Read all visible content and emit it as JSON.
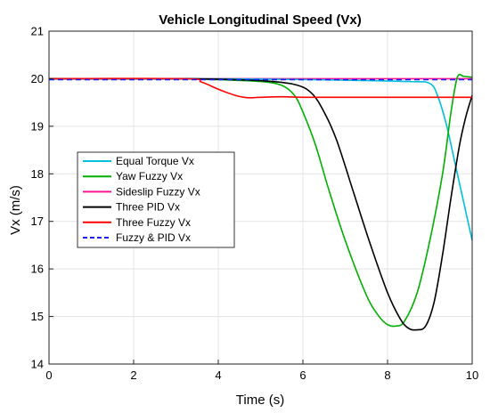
{
  "chart_data": {
    "type": "line",
    "title": "Vehicle Longitudinal Speed (Vx)",
    "xlabel": "Time (s)",
    "ylabel": "Vx (m/s)",
    "xlim": [
      0,
      10
    ],
    "ylim": [
      14,
      21
    ],
    "xticks": [
      0,
      2,
      4,
      6,
      8,
      10
    ],
    "yticks": [
      14,
      15,
      16,
      17,
      18,
      19,
      20,
      21
    ],
    "xtick_labels": [
      "0",
      "2",
      "4",
      "6",
      "8",
      "10"
    ],
    "ytick_labels": [
      "14",
      "15",
      "16",
      "17",
      "18",
      "19",
      "20",
      "21"
    ],
    "grid": true,
    "legend_position": "left-middle",
    "series": [
      {
        "name": "Equal Torque Vx",
        "color": "#00bfdf",
        "dash": "solid",
        "x": [
          0,
          3.0,
          5.0,
          7.0,
          8.5,
          9.0,
          9.2,
          9.4,
          9.6,
          9.8,
          10.0
        ],
        "y": [
          20.0,
          20.0,
          19.99,
          19.97,
          19.94,
          19.9,
          19.6,
          19.0,
          18.2,
          17.4,
          16.6
        ]
      },
      {
        "name": "Yaw Fuzzy Vx",
        "color": "#00b000",
        "dash": "solid",
        "x": [
          0,
          3.0,
          4.0,
          5.0,
          5.5,
          5.8,
          6.0,
          6.3,
          6.6,
          7.0,
          7.5,
          7.8,
          8.0,
          8.2,
          8.4,
          8.7,
          9.0,
          9.3,
          9.5,
          9.65,
          9.8,
          10.0
        ],
        "y": [
          20.0,
          20.0,
          19.98,
          19.94,
          19.86,
          19.65,
          19.3,
          18.6,
          17.7,
          16.6,
          15.45,
          15.0,
          14.83,
          14.8,
          14.9,
          15.5,
          16.6,
          18.0,
          19.3,
          20.03,
          20.05,
          20.03
        ]
      },
      {
        "name": "Sideslip    Fuzzy Vx",
        "color": "#ff1493",
        "dash": "solid",
        "x": [
          0,
          2,
          4,
          6,
          8,
          10
        ],
        "y": [
          20.0,
          20.0,
          20.0,
          20.0,
          20.0,
          20.0
        ]
      },
      {
        "name": "Three PID Vx",
        "color": "#000000",
        "dash": "solid",
        "x": [
          0,
          3.0,
          4.0,
          5.0,
          5.8,
          6.2,
          6.5,
          6.8,
          7.2,
          7.6,
          8.0,
          8.3,
          8.5,
          8.7,
          8.9,
          9.1,
          9.3,
          9.5,
          9.7,
          9.85,
          10.0
        ],
        "y": [
          20.0,
          20.0,
          19.99,
          19.96,
          19.88,
          19.7,
          19.3,
          18.7,
          17.6,
          16.5,
          15.5,
          14.95,
          14.75,
          14.72,
          14.8,
          15.3,
          16.3,
          17.5,
          18.6,
          19.2,
          19.65
        ]
      },
      {
        "name": "Three  Fuzzy Vx",
        "color": "#ff0000",
        "dash": "solid",
        "x": [
          0,
          3.2,
          3.6,
          4.0,
          4.4,
          4.7,
          5.0,
          5.5,
          6.0,
          7.0,
          8.0,
          9.0,
          10.0
        ],
        "y": [
          20.0,
          20.0,
          19.93,
          19.78,
          19.65,
          19.6,
          19.61,
          19.62,
          19.61,
          19.61,
          19.61,
          19.61,
          19.61
        ]
      },
      {
        "name": "Fuzzy & PID Vx",
        "color": "#1a1aff",
        "dash": "dashed",
        "x": [
          0,
          2,
          4,
          6,
          8,
          10
        ],
        "y": [
          19.98,
          19.98,
          19.98,
          19.98,
          19.98,
          19.98
        ]
      }
    ]
  }
}
